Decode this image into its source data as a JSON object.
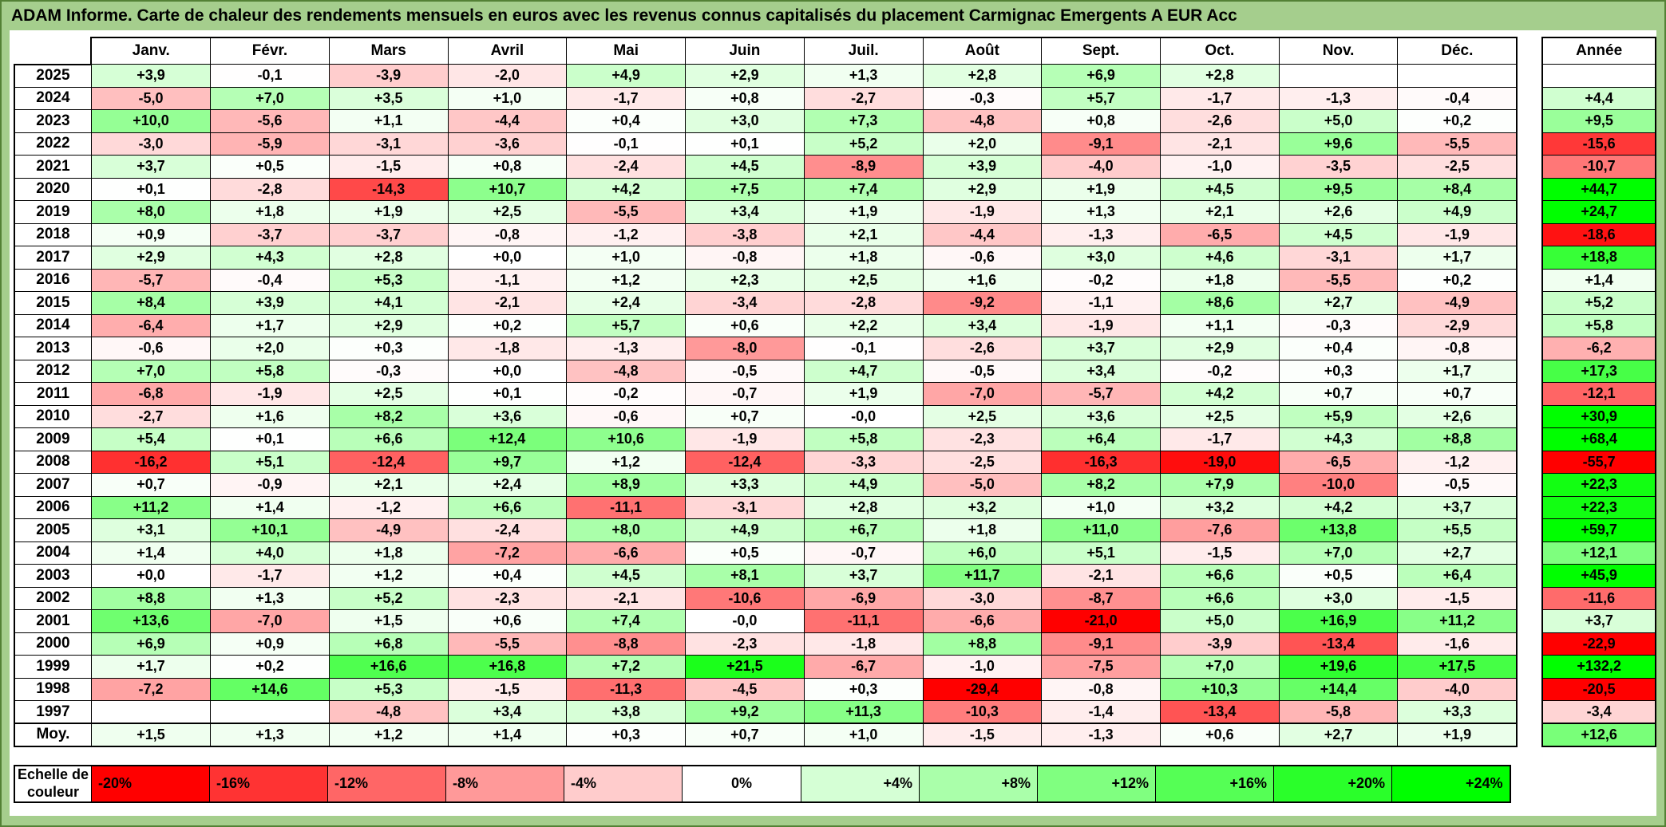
{
  "title": "ADAM Informe. Carte de chaleur des rendements mensuels en euros avec les revenus connus capitalisés du placement Carmignac Emergents A EUR Acc",
  "theme": {
    "frame_green": "#A5CE8D",
    "frame_border": "#538135",
    "grid_color": "#000000"
  },
  "chart_data": {
    "type": "heatmap",
    "unit": "%",
    "columns": [
      "Janv.",
      "Févr.",
      "Mars",
      "Avril",
      "Mai",
      "Juin",
      "Juil.",
      "Août",
      "Sept.",
      "Oct.",
      "Nov.",
      "Déc."
    ],
    "annee_header": "Année",
    "rows": [
      {
        "year": "2025",
        "cells": [
          "+3,9",
          "-0,1",
          "-3,9",
          "-2,0",
          "+4,9",
          "+2,9",
          "+1,3",
          "+2,8",
          "+6,9",
          "+2,8",
          "",
          ""
        ],
        "annee": ""
      },
      {
        "year": "2024",
        "cells": [
          "-5,0",
          "+7,0",
          "+3,5",
          "+1,0",
          "-1,7",
          "+0,8",
          "-2,7",
          "-0,3",
          "+5,7",
          "-1,7",
          "-1,3",
          "-0,4"
        ],
        "annee": "+4,4"
      },
      {
        "year": "2023",
        "cells": [
          "+10,0",
          "-5,6",
          "+1,1",
          "-4,4",
          "+0,4",
          "+3,0",
          "+7,3",
          "-4,8",
          "+0,8",
          "-2,6",
          "+5,0",
          "+0,2"
        ],
        "annee": "+9,5"
      },
      {
        "year": "2022",
        "cells": [
          "-3,0",
          "-5,9",
          "-3,1",
          "-3,6",
          "-0,1",
          "+0,1",
          "+5,2",
          "+2,0",
          "-9,1",
          "-2,1",
          "+9,6",
          "-5,5"
        ],
        "annee": "-15,6"
      },
      {
        "year": "2021",
        "cells": [
          "+3,7",
          "+0,5",
          "-1,5",
          "+0,8",
          "-2,4",
          "+4,5",
          "-8,9",
          "+3,9",
          "-4,0",
          "-1,0",
          "-3,5",
          "-2,5"
        ],
        "annee": "-10,7"
      },
      {
        "year": "2020",
        "cells": [
          "+0,1",
          "-2,8",
          "-14,3",
          "+10,7",
          "+4,2",
          "+7,5",
          "+7,4",
          "+2,9",
          "+1,9",
          "+4,5",
          "+9,5",
          "+8,4"
        ],
        "annee": "+44,7"
      },
      {
        "year": "2019",
        "cells": [
          "+8,0",
          "+1,8",
          "+1,9",
          "+2,5",
          "-5,5",
          "+3,4",
          "+1,9",
          "-1,9",
          "+1,3",
          "+2,1",
          "+2,6",
          "+4,9"
        ],
        "annee": "+24,7"
      },
      {
        "year": "2018",
        "cells": [
          "+0,9",
          "-3,7",
          "-3,7",
          "-0,8",
          "-1,2",
          "-3,8",
          "+2,1",
          "-4,4",
          "-1,3",
          "-6,5",
          "+4,5",
          "-1,9"
        ],
        "annee": "-18,6"
      },
      {
        "year": "2017",
        "cells": [
          "+2,9",
          "+4,3",
          "+2,8",
          "+0,0",
          "+1,0",
          "-0,8",
          "+1,8",
          "-0,6",
          "+3,0",
          "+4,6",
          "-3,1",
          "+1,7"
        ],
        "annee": "+18,8"
      },
      {
        "year": "2016",
        "cells": [
          "-5,7",
          "-0,4",
          "+5,3",
          "-1,1",
          "+1,2",
          "+2,3",
          "+2,5",
          "+1,6",
          "-0,2",
          "+1,8",
          "-5,5",
          "+0,2"
        ],
        "annee": "+1,4"
      },
      {
        "year": "2015",
        "cells": [
          "+8,4",
          "+3,9",
          "+4,1",
          "-2,1",
          "+2,4",
          "-3,4",
          "-2,8",
          "-9,2",
          "-1,1",
          "+8,6",
          "+2,7",
          "-4,9"
        ],
        "annee": "+5,2"
      },
      {
        "year": "2014",
        "cells": [
          "-6,4",
          "+1,7",
          "+2,9",
          "+0,2",
          "+5,7",
          "+0,6",
          "+2,2",
          "+3,4",
          "-1,9",
          "+1,1",
          "-0,3",
          "-2,9"
        ],
        "annee": "+5,8"
      },
      {
        "year": "2013",
        "cells": [
          "-0,6",
          "+2,0",
          "+0,3",
          "-1,8",
          "-1,3",
          "-8,0",
          "-0,1",
          "-2,6",
          "+3,7",
          "+2,9",
          "+0,4",
          "-0,8"
        ],
        "annee": "-6,2"
      },
      {
        "year": "2012",
        "cells": [
          "+7,0",
          "+5,8",
          "-0,3",
          "+0,0",
          "-4,8",
          "-0,5",
          "+4,7",
          "-0,5",
          "+3,4",
          "-0,2",
          "+0,3",
          "+1,7"
        ],
        "annee": "+17,3"
      },
      {
        "year": "2011",
        "cells": [
          "-6,8",
          "-1,9",
          "+2,5",
          "+0,1",
          "-0,2",
          "-0,7",
          "+1,9",
          "-7,0",
          "-5,7",
          "+4,2",
          "+0,7",
          "+0,7"
        ],
        "annee": "-12,1"
      },
      {
        "year": "2010",
        "cells": [
          "-2,7",
          "+1,6",
          "+8,2",
          "+3,6",
          "-0,6",
          "+0,7",
          "-0,0",
          "+2,5",
          "+3,6",
          "+2,5",
          "+5,9",
          "+2,6"
        ],
        "annee": "+30,9"
      },
      {
        "year": "2009",
        "cells": [
          "+5,4",
          "+0,1",
          "+6,6",
          "+12,4",
          "+10,6",
          "-1,9",
          "+5,8",
          "-2,3",
          "+6,4",
          "-1,7",
          "+4,3",
          "+8,8"
        ],
        "annee": "+68,4"
      },
      {
        "year": "2008",
        "cells": [
          "-16,2",
          "+5,1",
          "-12,4",
          "+9,7",
          "+1,2",
          "-12,4",
          "-3,3",
          "-2,5",
          "-16,3",
          "-19,0",
          "-6,5",
          "-1,2"
        ],
        "annee": "-55,7"
      },
      {
        "year": "2007",
        "cells": [
          "+0,7",
          "-0,9",
          "+2,1",
          "+2,4",
          "+8,9",
          "+3,3",
          "+4,9",
          "-5,0",
          "+8,2",
          "+7,9",
          "-10,0",
          "-0,5"
        ],
        "annee": "+22,3"
      },
      {
        "year": "2006",
        "cells": [
          "+11,2",
          "+1,4",
          "-1,2",
          "+6,6",
          "-11,1",
          "-3,1",
          "+2,8",
          "+3,2",
          "+1,0",
          "+3,2",
          "+4,2",
          "+3,7"
        ],
        "annee": "+22,3"
      },
      {
        "year": "2005",
        "cells": [
          "+3,1",
          "+10,1",
          "-4,9",
          "-2,4",
          "+8,0",
          "+4,9",
          "+6,7",
          "+1,8",
          "+11,0",
          "-7,6",
          "+13,8",
          "+5,5"
        ],
        "annee": "+59,7"
      },
      {
        "year": "2004",
        "cells": [
          "+1,4",
          "+4,0",
          "+1,8",
          "-7,2",
          "-6,6",
          "+0,5",
          "-0,7",
          "+6,0",
          "+5,1",
          "-1,5",
          "+7,0",
          "+2,7"
        ],
        "annee": "+12,1"
      },
      {
        "year": "2003",
        "cells": [
          "+0,0",
          "-1,7",
          "+1,2",
          "+0,4",
          "+4,5",
          "+8,1",
          "+3,7",
          "+11,7",
          "-2,1",
          "+6,6",
          "+0,5",
          "+6,4"
        ],
        "annee": "+45,9"
      },
      {
        "year": "2002",
        "cells": [
          "+8,8",
          "+1,3",
          "+5,2",
          "-2,3",
          "-2,1",
          "-10,6",
          "-6,9",
          "-3,0",
          "-8,7",
          "+6,6",
          "+3,0",
          "-1,5"
        ],
        "annee": "-11,6"
      },
      {
        "year": "2001",
        "cells": [
          "+13,6",
          "-7,0",
          "+1,5",
          "+0,6",
          "+7,4",
          "-0,0",
          "-11,1",
          "-6,6",
          "-21,0",
          "+5,0",
          "+16,9",
          "+11,2"
        ],
        "annee": "+3,7"
      },
      {
        "year": "2000",
        "cells": [
          "+6,9",
          "+0,9",
          "+6,8",
          "-5,5",
          "-8,8",
          "-2,3",
          "-1,8",
          "+8,8",
          "-9,1",
          "-3,9",
          "-13,4",
          "-1,6"
        ],
        "annee": "-22,9"
      },
      {
        "year": "1999",
        "cells": [
          "+1,7",
          "+0,2",
          "+16,6",
          "+16,8",
          "+7,2",
          "+21,5",
          "-6,7",
          "-1,0",
          "-7,5",
          "+7,0",
          "+19,6",
          "+17,5"
        ],
        "annee": "+132,2"
      },
      {
        "year": "1998",
        "cells": [
          "-7,2",
          "+14,6",
          "+5,3",
          "-1,5",
          "-11,3",
          "-4,5",
          "+0,3",
          "-29,4",
          "-0,8",
          "+10,3",
          "+14,4",
          "-4,0"
        ],
        "annee": "-20,5"
      },
      {
        "year": "1997",
        "cells": [
          "",
          "",
          "-4,8",
          "+3,4",
          "+3,8",
          "+9,2",
          "+11,3",
          "-10,3",
          "-1,4",
          "-13,4",
          "-5,8",
          "+3,3"
        ],
        "annee": "-3,4"
      }
    ],
    "average": {
      "label": "Moy.",
      "cells": [
        "+1,5",
        "+1,3",
        "+1,2",
        "+1,4",
        "+0,3",
        "+0,7",
        "+1,0",
        "-1,5",
        "-1,3",
        "+0,6",
        "+2,7",
        "+1,9"
      ],
      "annee": "+12,6"
    },
    "color_scale": {
      "label": "Echelle de couleur",
      "ticks": [
        "-20%",
        "-16%",
        "-12%",
        "-8%",
        "-4%",
        "0%",
        "+4%",
        "+8%",
        "+12%",
        "+16%",
        "+20%",
        "+24%"
      ],
      "negative_color": "#FF0000",
      "zero_color": "#FFFFFF",
      "positive_color": "#00FF00",
      "negative_limit": -20,
      "positive_limit": 24
    }
  }
}
